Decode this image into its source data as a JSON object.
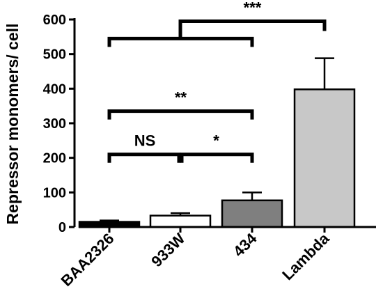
{
  "chart_data": {
    "type": "bar",
    "title": "",
    "xlabel": "",
    "ylabel": "Repressor monomers/ cell",
    "ylim": [
      0,
      600
    ],
    "yticks": [
      0,
      100,
      200,
      300,
      400,
      500,
      600
    ],
    "grid": false,
    "legend": "none",
    "categories": [
      "BAA2326",
      "933W",
      "434",
      "Lambda"
    ],
    "values": [
      15,
      33,
      77,
      398
    ],
    "errors": [
      4,
      7,
      23,
      90
    ],
    "colors": [
      "#000000",
      "#ffffff",
      "#7f7f7f",
      "#c8c8c8"
    ],
    "significance": [
      {
        "label": "NS",
        "from": 0,
        "to": 1,
        "level": 210
      },
      {
        "label": "*",
        "from": 1,
        "to": 2,
        "level": 210
      },
      {
        "label": "**",
        "from": 0,
        "to": 2,
        "level": 335
      },
      {
        "label": "***",
        "from": 1,
        "to": 3,
        "level": 595,
        "from_group": [
          0,
          2
        ],
        "group_level": 545
      }
    ]
  }
}
